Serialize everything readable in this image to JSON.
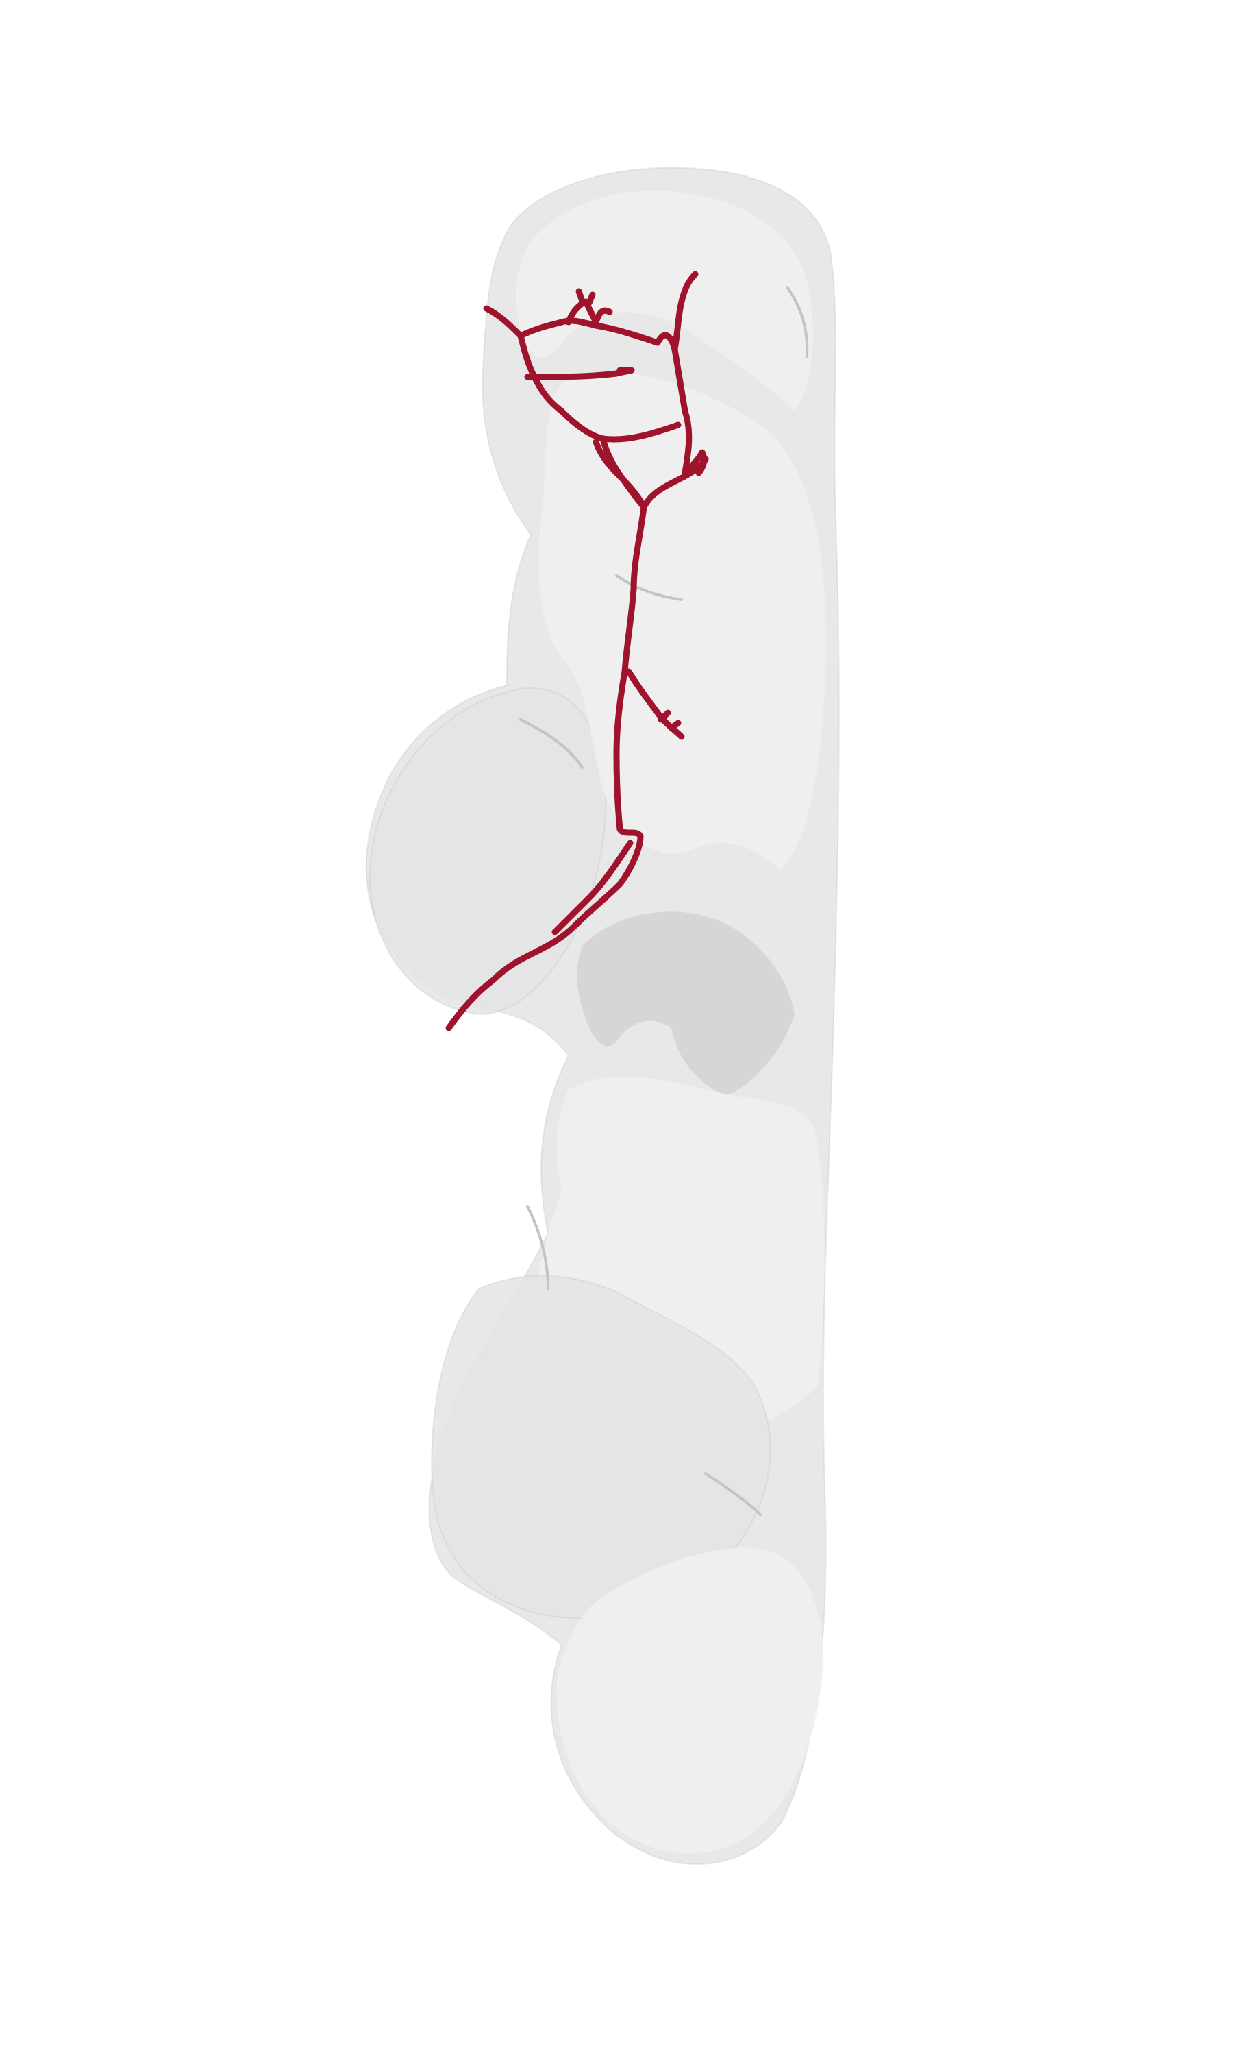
{
  "scene": {
    "background_color": "#ffffff",
    "tissue_fill_color": "#e4e4e4",
    "tissue_highlight_color": "#f0f0f0",
    "tissue_shadow_color": "#cfcfcf",
    "tissue_edge_color": "#c4c4c4",
    "neuron_color": "#a0132d"
  }
}
